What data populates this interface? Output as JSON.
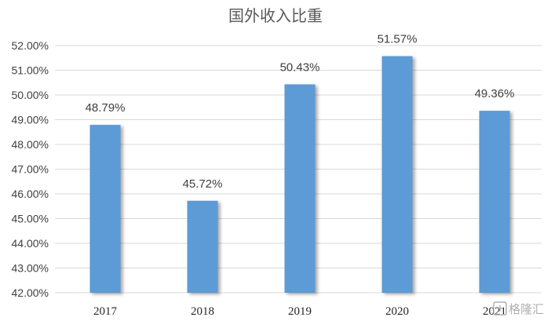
{
  "chart_data": {
    "type": "bar",
    "title": "国外收入比重",
    "categories": [
      "2017",
      "2018",
      "2019",
      "2020",
      "2021"
    ],
    "values": [
      48.79,
      45.72,
      50.43,
      51.57,
      49.36
    ],
    "data_labels": [
      "48.79%",
      "45.72%",
      "50.43%",
      "51.57%",
      "49.36%"
    ],
    "ylim": [
      42,
      52
    ],
    "yticks": [
      "42.00%",
      "43.00%",
      "44.00%",
      "45.00%",
      "46.00%",
      "47.00%",
      "48.00%",
      "49.00%",
      "50.00%",
      "51.00%",
      "52.00%"
    ],
    "grid": true,
    "bar_color": "#5b9bd5"
  },
  "watermark": {
    "text": "格隆汇",
    "icon": "gelonghui-logo-icon"
  }
}
